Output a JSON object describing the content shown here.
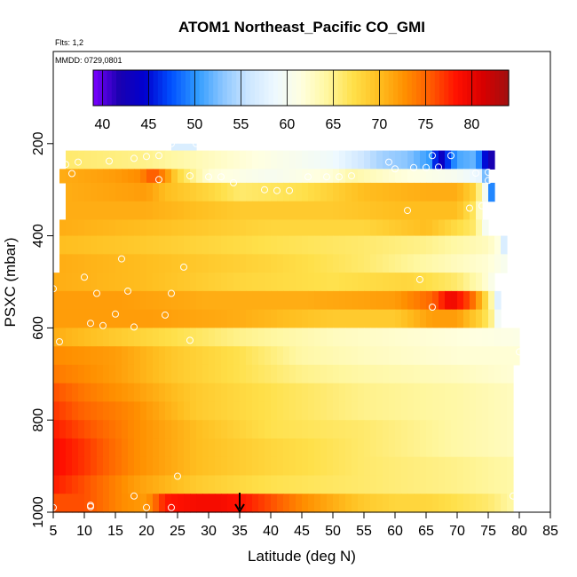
{
  "chart_data": {
    "type": "heatmap",
    "title": "ATOM1 Northeast_Pacific CO_GMI",
    "subtitle_flights": "Flts: 1,2",
    "subtitle_dates": "MMDD: 0729,0801",
    "xlabel": "Latitude (deg N)",
    "ylabel": "PSXC (mbar)",
    "xlim": [
      5,
      85
    ],
    "ylim": [
      1000,
      0
    ],
    "x_ticks": [
      "5",
      "10",
      "15",
      "20",
      "25",
      "30",
      "35",
      "40",
      "45",
      "50",
      "55",
      "60",
      "65",
      "70",
      "75",
      "80",
      "85"
    ],
    "y_ticks": [
      "200",
      "400",
      "600",
      "800",
      "1000"
    ],
    "colorbar": {
      "range": [
        39,
        84
      ],
      "ticks": [
        "40",
        "45",
        "50",
        "55",
        "60",
        "65",
        "70",
        "75",
        "80"
      ],
      "colors": [
        "#7b00ff",
        "#1a00b0",
        "#0000d0",
        "#0050ff",
        "#2f9bff",
        "#8cc6ff",
        "#cde6ff",
        "#eef9ff",
        "#ffffe0",
        "#fff7a0",
        "#ffe04a",
        "#ffbf20",
        "#ff9000",
        "#ff5a00",
        "#ff1000",
        "#d80000",
        "#a01010"
      ]
    },
    "grid": false,
    "legend": "none",
    "layers": [
      {
        "p_top": 200,
        "p_bot": 215,
        "lat_min": 24,
        "lat_max": 28,
        "values": [
          [
            24,
            57
          ],
          [
            28,
            57
          ]
        ]
      },
      {
        "p_top": 215,
        "p_bot": 255,
        "lat_min": 7,
        "lat_max": 76,
        "values": [
          [
            7,
            66
          ],
          [
            20,
            65
          ],
          [
            30,
            63
          ],
          [
            40,
            61
          ],
          [
            50,
            59
          ],
          [
            58,
            54
          ],
          [
            62,
            53
          ],
          [
            66,
            50
          ],
          [
            67,
            42
          ],
          [
            70,
            51
          ],
          [
            73,
            52
          ],
          [
            74,
            47
          ],
          [
            75,
            43
          ],
          [
            76,
            41
          ]
        ]
      },
      {
        "p_top": 255,
        "p_bot": 285,
        "lat_min": 6,
        "lat_max": 75,
        "values": [
          [
            6,
            71
          ],
          [
            15,
            72
          ],
          [
            19,
            73
          ],
          [
            21,
            76
          ],
          [
            23,
            73
          ],
          [
            25,
            68
          ],
          [
            30,
            62
          ],
          [
            40,
            60
          ],
          [
            50,
            62
          ],
          [
            53,
            64
          ],
          [
            60,
            62
          ],
          [
            70,
            60
          ],
          [
            74,
            58
          ],
          [
            75,
            47
          ]
        ]
      },
      {
        "p_top": 285,
        "p_bot": 325,
        "lat_min": 7,
        "lat_max": 76,
        "values": [
          [
            7,
            71
          ],
          [
            20,
            72
          ],
          [
            23,
            70
          ],
          [
            30,
            68
          ],
          [
            35,
            66
          ],
          [
            45,
            67
          ],
          [
            55,
            70
          ],
          [
            65,
            71
          ],
          [
            70,
            71
          ],
          [
            73,
            68
          ],
          [
            75,
            57
          ],
          [
            76,
            42
          ]
        ]
      },
      {
        "p_top": 325,
        "p_bot": 365,
        "lat_min": 7,
        "lat_max": 74,
        "values": [
          [
            7,
            71
          ],
          [
            20,
            71
          ],
          [
            35,
            69
          ],
          [
            50,
            69
          ],
          [
            60,
            70
          ],
          [
            70,
            70
          ],
          [
            73,
            66
          ],
          [
            74,
            60
          ]
        ]
      },
      {
        "p_top": 365,
        "p_bot": 400,
        "lat_min": 6,
        "lat_max": 75,
        "values": [
          [
            6,
            71
          ],
          [
            20,
            70
          ],
          [
            40,
            68
          ],
          [
            55,
            68
          ],
          [
            65,
            70
          ],
          [
            73,
            66
          ],
          [
            75,
            58
          ]
        ]
      },
      {
        "p_top": 400,
        "p_bot": 440,
        "lat_min": 6,
        "lat_max": 78,
        "values": [
          [
            6,
            70
          ],
          [
            20,
            69
          ],
          [
            40,
            67
          ],
          [
            55,
            66
          ],
          [
            65,
            65
          ],
          [
            75,
            63
          ],
          [
            77,
            61
          ],
          [
            78,
            53
          ]
        ]
      },
      {
        "p_top": 440,
        "p_bot": 480,
        "lat_min": 6,
        "lat_max": 78,
        "values": [
          [
            6,
            71
          ],
          [
            20,
            70
          ],
          [
            40,
            68
          ],
          [
            55,
            66
          ],
          [
            65,
            64
          ],
          [
            75,
            62
          ],
          [
            78,
            60
          ]
        ]
      },
      {
        "p_top": 480,
        "p_bot": 520,
        "lat_min": 5,
        "lat_max": 76,
        "values": [
          [
            5,
            71
          ],
          [
            20,
            70
          ],
          [
            35,
            68
          ],
          [
            50,
            67
          ],
          [
            62,
            68
          ],
          [
            70,
            66
          ],
          [
            74,
            63
          ],
          [
            76,
            60
          ]
        ]
      },
      {
        "p_top": 520,
        "p_bot": 560,
        "lat_min": 5,
        "lat_max": 77,
        "values": [
          [
            5,
            72
          ],
          [
            15,
            72
          ],
          [
            30,
            71
          ],
          [
            45,
            71
          ],
          [
            60,
            72
          ],
          [
            66,
            75
          ],
          [
            69,
            80
          ],
          [
            72,
            76
          ],
          [
            74,
            70
          ],
          [
            76,
            62
          ],
          [
            77,
            53
          ]
        ]
      },
      {
        "p_top": 560,
        "p_bot": 600,
        "lat_min": 5,
        "lat_max": 77,
        "values": [
          [
            5,
            72
          ],
          [
            20,
            72
          ],
          [
            35,
            71
          ],
          [
            50,
            69
          ],
          [
            60,
            69
          ],
          [
            66,
            72
          ],
          [
            70,
            72
          ],
          [
            74,
            68
          ],
          [
            76,
            64
          ],
          [
            77,
            55
          ]
        ]
      },
      {
        "p_top": 600,
        "p_bot": 640,
        "lat_min": 5,
        "lat_max": 80,
        "values": [
          [
            5,
            71
          ],
          [
            20,
            68
          ],
          [
            35,
            65
          ],
          [
            50,
            63
          ],
          [
            65,
            62
          ],
          [
            80,
            61
          ]
        ]
      },
      {
        "p_top": 640,
        "p_bot": 680,
        "lat_min": 5,
        "lat_max": 80,
        "values": [
          [
            5,
            73
          ],
          [
            15,
            72
          ],
          [
            25,
            69
          ],
          [
            35,
            67
          ],
          [
            45,
            64
          ],
          [
            55,
            63
          ],
          [
            70,
            62
          ],
          [
            80,
            62
          ]
        ]
      },
      {
        "p_top": 680,
        "p_bot": 720,
        "lat_min": 5,
        "lat_max": 79,
        "values": [
          [
            5,
            74
          ],
          [
            15,
            72
          ],
          [
            25,
            69
          ],
          [
            35,
            67
          ],
          [
            45,
            65
          ],
          [
            55,
            64
          ],
          [
            70,
            63
          ],
          [
            79,
            62
          ]
        ]
      },
      {
        "p_top": 720,
        "p_bot": 760,
        "lat_min": 5,
        "lat_max": 79,
        "values": [
          [
            5,
            76
          ],
          [
            10,
            74
          ],
          [
            18,
            72
          ],
          [
            28,
            69
          ],
          [
            40,
            67
          ],
          [
            55,
            65
          ],
          [
            70,
            64
          ],
          [
            79,
            63
          ]
        ]
      },
      {
        "p_top": 760,
        "p_bot": 800,
        "lat_min": 5,
        "lat_max": 79,
        "values": [
          [
            5,
            77
          ],
          [
            10,
            75
          ],
          [
            18,
            73
          ],
          [
            28,
            69
          ],
          [
            40,
            67
          ],
          [
            55,
            65
          ],
          [
            70,
            64
          ],
          [
            79,
            63
          ]
        ]
      },
      {
        "p_top": 800,
        "p_bot": 840,
        "lat_min": 5,
        "lat_max": 79,
        "values": [
          [
            5,
            78
          ],
          [
            10,
            76
          ],
          [
            18,
            73
          ],
          [
            28,
            70
          ],
          [
            40,
            67
          ],
          [
            55,
            66
          ],
          [
            70,
            64
          ],
          [
            79,
            63
          ]
        ]
      },
      {
        "p_top": 840,
        "p_bot": 880,
        "lat_min": 5,
        "lat_max": 79,
        "values": [
          [
            5,
            79
          ],
          [
            10,
            77
          ],
          [
            18,
            73
          ],
          [
            28,
            70
          ],
          [
            40,
            68
          ],
          [
            55,
            66
          ],
          [
            70,
            64
          ],
          [
            79,
            63
          ]
        ]
      },
      {
        "p_top": 880,
        "p_bot": 920,
        "lat_min": 5,
        "lat_max": 79,
        "values": [
          [
            5,
            79
          ],
          [
            10,
            77
          ],
          [
            18,
            73
          ],
          [
            28,
            70
          ],
          [
            40,
            68
          ],
          [
            55,
            66
          ],
          [
            70,
            65
          ],
          [
            79,
            64
          ]
        ]
      },
      {
        "p_top": 920,
        "p_bot": 960,
        "lat_min": 5,
        "lat_max": 79,
        "values": [
          [
            5,
            78
          ],
          [
            10,
            76
          ],
          [
            18,
            72
          ],
          [
            28,
            69
          ],
          [
            40,
            67
          ],
          [
            55,
            66
          ],
          [
            70,
            65
          ],
          [
            79,
            64
          ]
        ]
      },
      {
        "p_top": 960,
        "p_bot": 1000,
        "lat_min": 5,
        "lat_max": 79,
        "values": [
          [
            5,
            76
          ],
          [
            10,
            76
          ],
          [
            16,
            73
          ],
          [
            20,
            72
          ],
          [
            23,
            78
          ],
          [
            28,
            79
          ],
          [
            32,
            79
          ],
          [
            36,
            78
          ],
          [
            40,
            76
          ],
          [
            45,
            73
          ],
          [
            50,
            71
          ],
          [
            55,
            69
          ],
          [
            60,
            68
          ],
          [
            65,
            68
          ],
          [
            70,
            67
          ],
          [
            75,
            66
          ],
          [
            79,
            64
          ]
        ]
      }
    ],
    "markers": [
      [
        24,
        200
      ],
      [
        28,
        200
      ],
      [
        7,
        245
      ],
      [
        9,
        240
      ],
      [
        14,
        238
      ],
      [
        18,
        232
      ],
      [
        20,
        228
      ],
      [
        22,
        226
      ],
      [
        59,
        240
      ],
      [
        60,
        255
      ],
      [
        63,
        252
      ],
      [
        65,
        252
      ],
      [
        67,
        251
      ],
      [
        66,
        226
      ],
      [
        69,
        226
      ],
      [
        73,
        264
      ],
      [
        75,
        262
      ],
      [
        75,
        280
      ],
      [
        8,
        265
      ],
      [
        22,
        278
      ],
      [
        27,
        270
      ],
      [
        30,
        272
      ],
      [
        32,
        272
      ],
      [
        34,
        285
      ],
      [
        39,
        300
      ],
      [
        41,
        302
      ],
      [
        43,
        302
      ],
      [
        46,
        272
      ],
      [
        49,
        272
      ],
      [
        51,
        272
      ],
      [
        53,
        270
      ],
      [
        62,
        345
      ],
      [
        72,
        340
      ],
      [
        74,
        335
      ],
      [
        16,
        450
      ],
      [
        26,
        468
      ],
      [
        10,
        490
      ],
      [
        64,
        495
      ],
      [
        5,
        515
      ],
      [
        12,
        525
      ],
      [
        17,
        520
      ],
      [
        24,
        525
      ],
      [
        66,
        555
      ],
      [
        15,
        570
      ],
      [
        23,
        572
      ],
      [
        11,
        590
      ],
      [
        13,
        595
      ],
      [
        18,
        598
      ],
      [
        6,
        630
      ],
      [
        27,
        627
      ],
      [
        80,
        652
      ],
      [
        25,
        922
      ],
      [
        18,
        965
      ],
      [
        11,
        985
      ],
      [
        11,
        988
      ],
      [
        20,
        990
      ],
      [
        24,
        990
      ],
      [
        5,
        990
      ],
      [
        79,
        965
      ]
    ],
    "arrow": {
      "lat": 35,
      "p": 1000
    }
  }
}
